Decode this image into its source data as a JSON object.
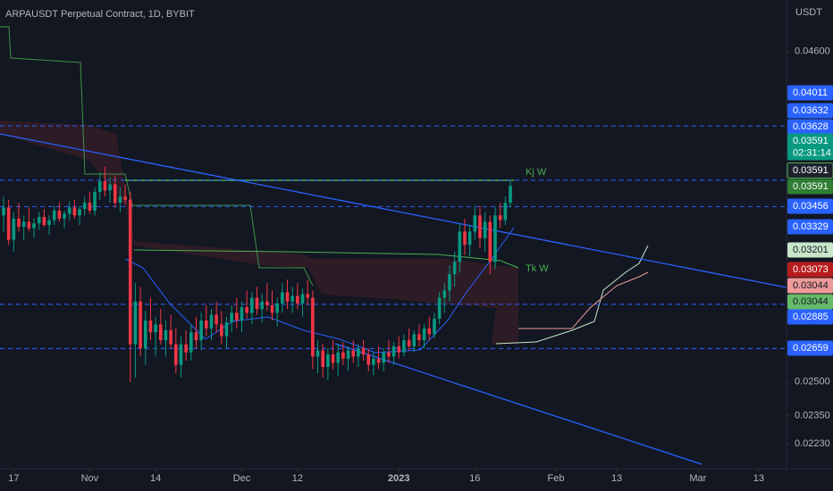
{
  "chart_data": {
    "type": "candlestick",
    "title": "ARPAUSDT Perpetual Contract, 1D, BYBIT",
    "axis_unit": "USDT",
    "log_scale": true,
    "up_color": "#089981",
    "down_color": "#f23645",
    "ylim": [
      0.0213,
      0.0506
    ],
    "yticks": [
      {
        "value": 0.046,
        "label": "0.04600"
      },
      {
        "value": 0.025,
        "label": "0.02500"
      },
      {
        "value": 0.0235,
        "label": "0.02350"
      },
      {
        "value": 0.0223,
        "label": "0.02230"
      }
    ],
    "xticks": [
      {
        "value": 2,
        "label": "17"
      },
      {
        "value": 17,
        "label": "Nov"
      },
      {
        "value": 30,
        "label": "14"
      },
      {
        "value": 47,
        "label": "Dec"
      },
      {
        "value": 58,
        "label": "12"
      },
      {
        "value": 78,
        "label": "2023"
      },
      {
        "value": 93,
        "label": "16"
      },
      {
        "value": 109,
        "label": "Feb"
      },
      {
        "value": 121,
        "label": "13"
      },
      {
        "value": 137,
        "label": "Mar"
      },
      {
        "value": 149,
        "label": "13"
      }
    ],
    "candles": [
      [
        0.034,
        0.0352,
        0.033,
        0.0345
      ],
      [
        0.0345,
        0.035,
        0.0322,
        0.0325
      ],
      [
        0.0325,
        0.0342,
        0.0318,
        0.0338
      ],
      [
        0.0338,
        0.0348,
        0.033,
        0.0333
      ],
      [
        0.0333,
        0.034,
        0.0325,
        0.0336
      ],
      [
        0.0336,
        0.0345,
        0.033,
        0.0332
      ],
      [
        0.0332,
        0.0338,
        0.0326,
        0.0335
      ],
      [
        0.0335,
        0.0342,
        0.0331,
        0.0339
      ],
      [
        0.0339,
        0.0344,
        0.0333,
        0.0334
      ],
      [
        0.0334,
        0.034,
        0.0328,
        0.0337
      ],
      [
        0.0337,
        0.0346,
        0.0334,
        0.0343
      ],
      [
        0.0343,
        0.0348,
        0.0336,
        0.0338
      ],
      [
        0.0338,
        0.0343,
        0.0332,
        0.0341
      ],
      [
        0.0341,
        0.0349,
        0.0337,
        0.0345
      ],
      [
        0.0345,
        0.035,
        0.0338,
        0.034
      ],
      [
        0.034,
        0.0346,
        0.0334,
        0.0344
      ],
      [
        0.0344,
        0.0352,
        0.034,
        0.0348
      ],
      [
        0.0348,
        0.0355,
        0.0341,
        0.0343
      ],
      [
        0.0343,
        0.0358,
        0.034,
        0.0355
      ],
      [
        0.0355,
        0.0368,
        0.035,
        0.0362
      ],
      [
        0.0362,
        0.0372,
        0.0352,
        0.0356
      ],
      [
        0.0356,
        0.0365,
        0.0348,
        0.036
      ],
      [
        0.036,
        0.0366,
        0.0345,
        0.0348
      ],
      [
        0.0348,
        0.0358,
        0.0342,
        0.0352
      ],
      [
        0.0352,
        0.036,
        0.0347,
        0.035
      ],
      [
        0.035,
        0.0355,
        0.025,
        0.0268
      ],
      [
        0.0268,
        0.03,
        0.0252,
        0.029
      ],
      [
        0.029,
        0.0298,
        0.0262,
        0.0266
      ],
      [
        0.0266,
        0.0285,
        0.0258,
        0.028
      ],
      [
        0.028,
        0.0292,
        0.027,
        0.0274
      ],
      [
        0.0274,
        0.0282,
        0.0262,
        0.0278
      ],
      [
        0.0278,
        0.0286,
        0.0268,
        0.027
      ],
      [
        0.027,
        0.028,
        0.0262,
        0.0275
      ],
      [
        0.0275,
        0.0283,
        0.0266,
        0.0268
      ],
      [
        0.0268,
        0.0276,
        0.0254,
        0.0258
      ],
      [
        0.0258,
        0.0272,
        0.0252,
        0.0268
      ],
      [
        0.0268,
        0.0275,
        0.026,
        0.0264
      ],
      [
        0.0264,
        0.0278,
        0.026,
        0.0274
      ],
      [
        0.0274,
        0.0282,
        0.0266,
        0.027
      ],
      [
        0.027,
        0.0284,
        0.0265,
        0.028
      ],
      [
        0.028,
        0.0288,
        0.0272,
        0.0276
      ],
      [
        0.0276,
        0.0286,
        0.027,
        0.0283
      ],
      [
        0.0283,
        0.029,
        0.0274,
        0.0278
      ],
      [
        0.0278,
        0.0285,
        0.0268,
        0.0272
      ],
      [
        0.0272,
        0.0282,
        0.0266,
        0.0279
      ],
      [
        0.0279,
        0.0288,
        0.0274,
        0.0284
      ],
      [
        0.0284,
        0.0292,
        0.0276,
        0.028
      ],
      [
        0.028,
        0.029,
        0.0274,
        0.0287
      ],
      [
        0.0287,
        0.0296,
        0.0281,
        0.0284
      ],
      [
        0.0284,
        0.0295,
        0.0278,
        0.0292
      ],
      [
        0.0292,
        0.0298,
        0.0283,
        0.0286
      ],
      [
        0.0286,
        0.0294,
        0.0279,
        0.029
      ],
      [
        0.029,
        0.03,
        0.0285,
        0.0288
      ],
      [
        0.0288,
        0.0296,
        0.028,
        0.0284
      ],
      [
        0.0284,
        0.0292,
        0.0277,
        0.0289
      ],
      [
        0.0289,
        0.03,
        0.0284,
        0.0295
      ],
      [
        0.0295,
        0.0302,
        0.0286,
        0.029
      ],
      [
        0.029,
        0.0298,
        0.0284,
        0.0293
      ],
      [
        0.0293,
        0.03,
        0.0286,
        0.0289
      ],
      [
        0.0289,
        0.0297,
        0.0282,
        0.0294
      ],
      [
        0.0294,
        0.0302,
        0.0288,
        0.0292
      ],
      [
        0.0292,
        0.0296,
        0.0256,
        0.0262
      ],
      [
        0.0262,
        0.027,
        0.0254,
        0.0265
      ],
      [
        0.0265,
        0.0268,
        0.0252,
        0.0257
      ],
      [
        0.0257,
        0.0266,
        0.0251,
        0.0263
      ],
      [
        0.0263,
        0.027,
        0.0256,
        0.0259
      ],
      [
        0.0259,
        0.0268,
        0.0253,
        0.0264
      ],
      [
        0.0264,
        0.0269,
        0.0258,
        0.0261
      ],
      [
        0.0261,
        0.0267,
        0.0255,
        0.0265
      ],
      [
        0.0265,
        0.027,
        0.0259,
        0.0262
      ],
      [
        0.0262,
        0.0268,
        0.0257,
        0.0266
      ],
      [
        0.0266,
        0.027,
        0.026,
        0.0263
      ],
      [
        0.0263,
        0.0266,
        0.0255,
        0.0258
      ],
      [
        0.0258,
        0.0264,
        0.0253,
        0.0261
      ],
      [
        0.0261,
        0.0267,
        0.0256,
        0.0259
      ],
      [
        0.0259,
        0.0266,
        0.0255,
        0.0264
      ],
      [
        0.0264,
        0.027,
        0.0259,
        0.0262
      ],
      [
        0.0262,
        0.0269,
        0.0258,
        0.0267
      ],
      [
        0.0267,
        0.0272,
        0.0261,
        0.0264
      ],
      [
        0.0264,
        0.0273,
        0.0262,
        0.027
      ],
      [
        0.027,
        0.0276,
        0.0265,
        0.0267
      ],
      [
        0.0267,
        0.0275,
        0.0264,
        0.0273
      ],
      [
        0.0273,
        0.0278,
        0.0267,
        0.027
      ],
      [
        0.027,
        0.0278,
        0.0266,
        0.0276
      ],
      [
        0.0276,
        0.0282,
        0.027,
        0.0273
      ],
      [
        0.0273,
        0.0284,
        0.0271,
        0.0281
      ],
      [
        0.0281,
        0.0295,
        0.0278,
        0.0292
      ],
      [
        0.0292,
        0.03,
        0.0284,
        0.0296
      ],
      [
        0.0296,
        0.031,
        0.029,
        0.0305
      ],
      [
        0.0305,
        0.0318,
        0.0298,
        0.0312
      ],
      [
        0.0312,
        0.0335,
        0.0306,
        0.033
      ],
      [
        0.033,
        0.0338,
        0.0316,
        0.0322
      ],
      [
        0.0322,
        0.0334,
        0.0315,
        0.033
      ],
      [
        0.033,
        0.0345,
        0.0325,
        0.034
      ],
      [
        0.034,
        0.0346,
        0.032,
        0.0326
      ],
      [
        0.0326,
        0.0342,
        0.0318,
        0.0336
      ],
      [
        0.0336,
        0.034,
        0.0305,
        0.0312
      ],
      [
        0.0312,
        0.0345,
        0.0308,
        0.034
      ],
      [
        0.034,
        0.0348,
        0.0332,
        0.0337
      ],
      [
        0.0337,
        0.0352,
        0.0334,
        0.0348
      ],
      [
        0.0348,
        0.0362,
        0.0345,
        0.0359
      ]
    ],
    "price_tags": [
      {
        "value": 0.04011,
        "label": "0.04011",
        "color": "#2962ff",
        "text_color": "#ffffff",
        "dashed": true
      },
      {
        "value": 0.03632,
        "label": "0.03632",
        "color": "#2962ff",
        "text_color": "#ffffff"
      },
      {
        "value": 0.03628,
        "label": "0.03628",
        "color": "#2962ff",
        "text_color": "#ffffff",
        "dashed": true
      },
      {
        "value": 0.03591,
        "label": "0.03591",
        "color": "#089981",
        "text_color": "#ffffff",
        "countdown": "02:31:14"
      },
      {
        "value": 0.03591,
        "label": "0.03591",
        "color": "#1e222d",
        "text_color": "#ffffff"
      },
      {
        "value": 0.03591,
        "label": "0.03591",
        "color": "#2e7d32",
        "text_color": "#ffffff"
      },
      {
        "value": 0.03456,
        "label": "0.03456",
        "color": "#2962ff",
        "text_color": "#ffffff",
        "dashed": true
      },
      {
        "value": 0.03329,
        "label": "0.03329",
        "color": "#2962ff",
        "text_color": "#ffffff"
      },
      {
        "value": 0.03201,
        "label": "0.03201",
        "color": "#c8e6c9",
        "text_color": "#131722"
      },
      {
        "value": 0.03073,
        "label": "0.03073",
        "color": "#b71c1c",
        "text_color": "#ffffff"
      },
      {
        "value": 0.03044,
        "label": "0.03044",
        "color": "#ef9a9a",
        "text_color": "#131722"
      },
      {
        "value": 0.03044,
        "label": "0.03044",
        "color": "#66bb6a",
        "text_color": "#131722"
      },
      {
        "value": 0.02885,
        "label": "0.02885",
        "color": "#2962ff",
        "text_color": "#ffffff",
        "dashed": true
      },
      {
        "value": 0.02659,
        "label": "0.02659",
        "color": "#2962ff",
        "text_color": "#ffffff",
        "dashed": true
      }
    ],
    "annotations": [
      "Kj W",
      "Tk W"
    ]
  }
}
